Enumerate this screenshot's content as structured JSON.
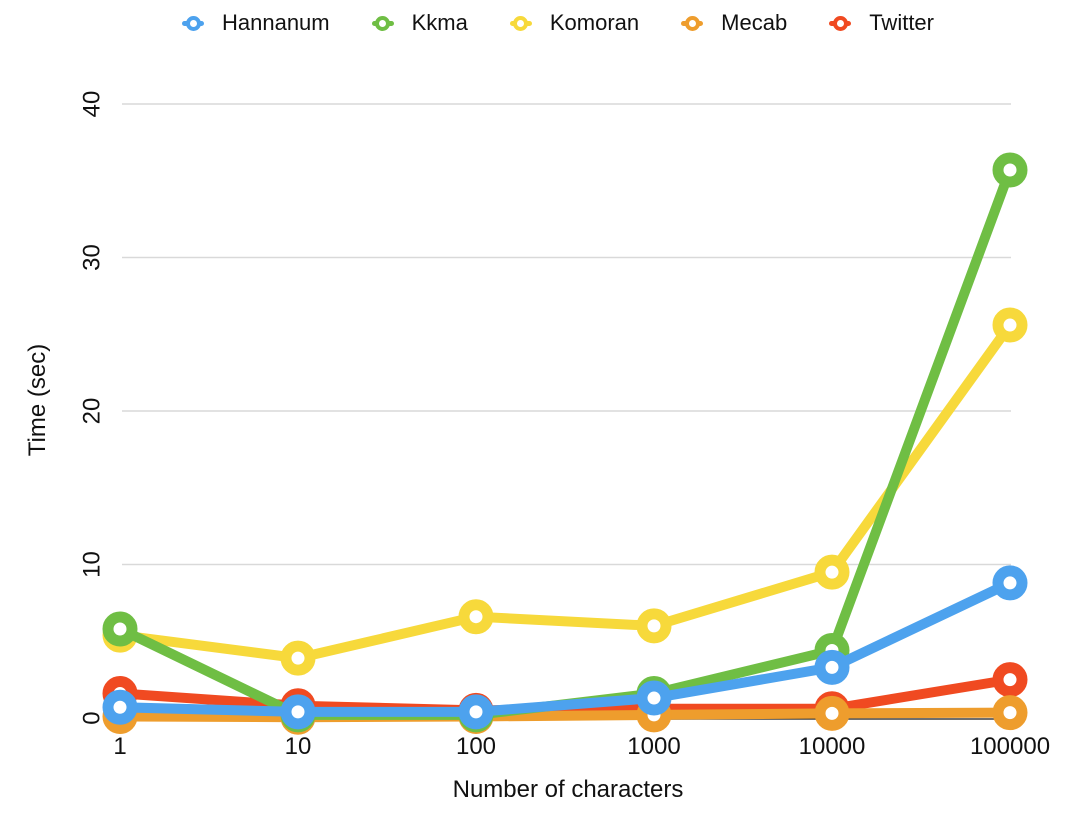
{
  "chart_data": {
    "type": "line",
    "title": "",
    "xlabel": "Number of characters",
    "ylabel": "Time (sec)",
    "x_categories": [
      "1",
      "10",
      "100",
      "1000",
      "10000",
      "100000"
    ],
    "x_scale": "log-categorical",
    "y_ticks": [
      0,
      10,
      20,
      30,
      40
    ],
    "ylim": [
      0,
      42
    ],
    "grid": true,
    "grid_color": "#d9d9d9",
    "axis_line_color": "#3f3f3f",
    "text_color": "#111111",
    "legend_position": "top",
    "marker_style": "ring",
    "series": [
      {
        "name": "Hannanum",
        "color": "#4DA2EE",
        "values": [
          0.7,
          0.4,
          0.4,
          1.3,
          3.3,
          8.8
        ]
      },
      {
        "name": "Kkma",
        "color": "#6FBE44",
        "values": [
          5.8,
          0.2,
          0.2,
          1.6,
          4.4,
          35.7
        ]
      },
      {
        "name": "Komoran",
        "color": "#F7D93B",
        "values": [
          5.4,
          3.9,
          6.6,
          6.0,
          9.5,
          25.6
        ]
      },
      {
        "name": "Mecab",
        "color": "#EE9D2D",
        "values": [
          0.1,
          0.05,
          0.1,
          0.2,
          0.3,
          0.35
        ]
      },
      {
        "name": "Twitter",
        "color": "#F04A21",
        "values": [
          1.6,
          0.8,
          0.5,
          0.6,
          0.6,
          2.5
        ]
      }
    ]
  }
}
